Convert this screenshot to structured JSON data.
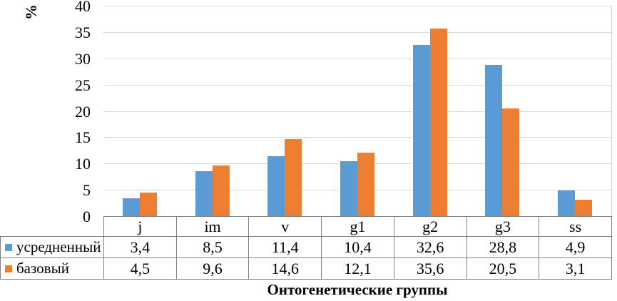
{
  "chart_data": {
    "type": "bar",
    "title": "",
    "xlabel": "Онтогенетические группы",
    "ylabel": "%",
    "categories": [
      "j",
      "im",
      "v",
      "g1",
      "g2",
      "g3",
      "ss"
    ],
    "series": [
      {
        "name": "усредненный",
        "color": "#5B9BD5",
        "values": [
          3.4,
          8.5,
          11.4,
          10.4,
          32.6,
          28.8,
          4.9
        ],
        "display_values": [
          "3,4",
          "8,5",
          "11,4",
          "10,4",
          "32,6",
          "28,8",
          "4,9"
        ]
      },
      {
        "name": "базовый",
        "color": "#ED7D31",
        "values": [
          4.5,
          9.6,
          14.6,
          12.1,
          35.6,
          20.5,
          3.1
        ],
        "display_values": [
          "4,5",
          "9,6",
          "14,6",
          "12,1",
          "35,6",
          "20,5",
          "3,1"
        ]
      }
    ],
    "ylim": [
      0,
      40
    ],
    "ytick_step": 5,
    "ytick_labels": [
      "0",
      "5",
      "10",
      "15",
      "20",
      "25",
      "30",
      "35",
      "40"
    ],
    "grid": true,
    "legend_position": "left-of-data-table",
    "colors": {
      "gridline": "#D9D9D9",
      "table_border": "#7F7F7F",
      "text": "#000000"
    }
  }
}
